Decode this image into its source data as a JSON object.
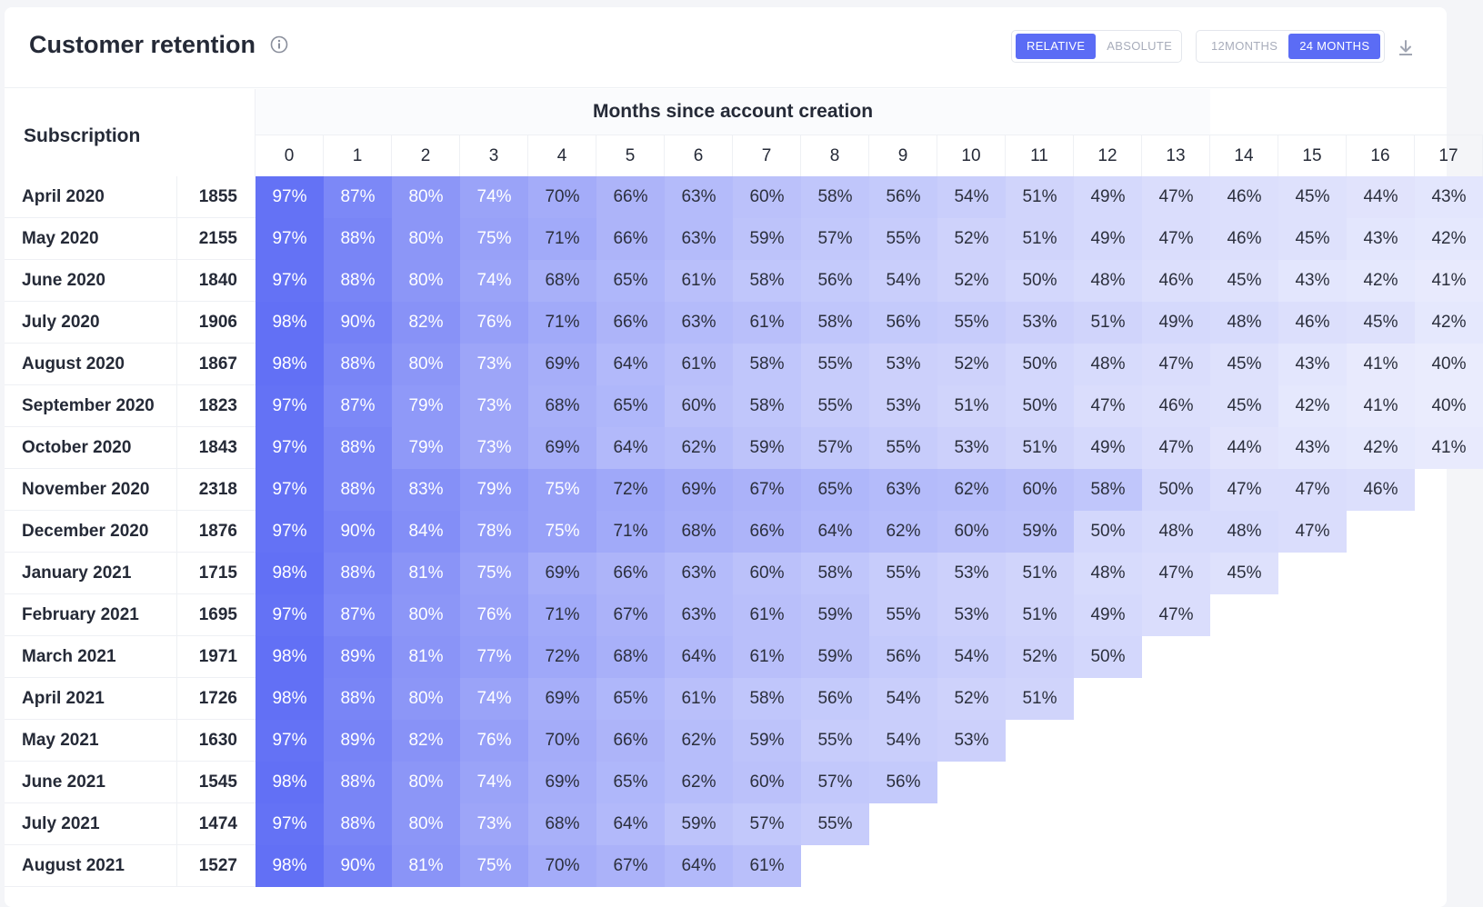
{
  "header": {
    "title": "Customer retention",
    "mode_toggle": {
      "options": [
        "RELATIVE",
        "ABSOLUTE"
      ],
      "selected": "RELATIVE"
    },
    "range_toggle": {
      "options": [
        "12MONTHS",
        "24 MONTHS"
      ],
      "selected": "24 MONTHS"
    },
    "icons": {
      "info": "info-icon",
      "download": "download-icon"
    }
  },
  "table": {
    "row_header": "Subscription",
    "column_group_title": "Months since account creation",
    "columns": [
      "0",
      "1",
      "2",
      "3",
      "4",
      "5",
      "6",
      "7",
      "8",
      "9",
      "10",
      "11",
      "12",
      "13",
      "14",
      "15",
      "16",
      "17"
    ],
    "accent_color": "#5b6cf5",
    "rows": [
      {
        "label": "April 2020",
        "count": "1855",
        "values": [
          "97%",
          "87%",
          "80%",
          "74%",
          "70%",
          "66%",
          "63%",
          "60%",
          "58%",
          "56%",
          "54%",
          "51%",
          "49%",
          "47%",
          "46%",
          "45%",
          "44%",
          "43%"
        ]
      },
      {
        "label": "May 2020",
        "count": "2155",
        "values": [
          "97%",
          "88%",
          "80%",
          "75%",
          "71%",
          "66%",
          "63%",
          "59%",
          "57%",
          "55%",
          "52%",
          "51%",
          "49%",
          "47%",
          "46%",
          "45%",
          "43%",
          "42%"
        ]
      },
      {
        "label": "June 2020",
        "count": "1840",
        "values": [
          "97%",
          "88%",
          "80%",
          "74%",
          "68%",
          "65%",
          "61%",
          "58%",
          "56%",
          "54%",
          "52%",
          "50%",
          "48%",
          "46%",
          "45%",
          "43%",
          "42%",
          "41%"
        ]
      },
      {
        "label": "July 2020",
        "count": "1906",
        "values": [
          "98%",
          "90%",
          "82%",
          "76%",
          "71%",
          "66%",
          "63%",
          "61%",
          "58%",
          "56%",
          "55%",
          "53%",
          "51%",
          "49%",
          "48%",
          "46%",
          "45%",
          "42%"
        ]
      },
      {
        "label": "August 2020",
        "count": "1867",
        "values": [
          "98%",
          "88%",
          "80%",
          "73%",
          "69%",
          "64%",
          "61%",
          "58%",
          "55%",
          "53%",
          "52%",
          "50%",
          "48%",
          "47%",
          "45%",
          "43%",
          "41%",
          "40%"
        ]
      },
      {
        "label": "September 2020",
        "count": "1823",
        "values": [
          "97%",
          "87%",
          "79%",
          "73%",
          "68%",
          "65%",
          "60%",
          "58%",
          "55%",
          "53%",
          "51%",
          "50%",
          "47%",
          "46%",
          "45%",
          "42%",
          "41%",
          "40%"
        ]
      },
      {
        "label": "October 2020",
        "count": "1843",
        "values": [
          "97%",
          "88%",
          "79%",
          "73%",
          "69%",
          "64%",
          "62%",
          "59%",
          "57%",
          "55%",
          "53%",
          "51%",
          "49%",
          "47%",
          "44%",
          "43%",
          "42%",
          "41%"
        ]
      },
      {
        "label": "November 2020",
        "count": "2318",
        "values": [
          "97%",
          "88%",
          "83%",
          "79%",
          "75%",
          "72%",
          "69%",
          "67%",
          "65%",
          "63%",
          "62%",
          "60%",
          "58%",
          "50%",
          "47%",
          "47%",
          "46%"
        ]
      },
      {
        "label": "December 2020",
        "count": "1876",
        "values": [
          "97%",
          "90%",
          "84%",
          "78%",
          "75%",
          "71%",
          "68%",
          "66%",
          "64%",
          "62%",
          "60%",
          "59%",
          "50%",
          "48%",
          "48%",
          "47%"
        ]
      },
      {
        "label": "January 2021",
        "count": "1715",
        "values": [
          "98%",
          "88%",
          "81%",
          "75%",
          "69%",
          "66%",
          "63%",
          "60%",
          "58%",
          "55%",
          "53%",
          "51%",
          "48%",
          "47%",
          "45%"
        ]
      },
      {
        "label": "February 2021",
        "count": "1695",
        "values": [
          "97%",
          "87%",
          "80%",
          "76%",
          "71%",
          "67%",
          "63%",
          "61%",
          "59%",
          "55%",
          "53%",
          "51%",
          "49%",
          "47%"
        ]
      },
      {
        "label": "March 2021",
        "count": "1971",
        "values": [
          "98%",
          "89%",
          "81%",
          "77%",
          "72%",
          "68%",
          "64%",
          "61%",
          "59%",
          "56%",
          "54%",
          "52%",
          "50%"
        ]
      },
      {
        "label": "April 2021",
        "count": "1726",
        "values": [
          "98%",
          "88%",
          "80%",
          "74%",
          "69%",
          "65%",
          "61%",
          "58%",
          "56%",
          "54%",
          "52%",
          "51%"
        ]
      },
      {
        "label": "May 2021",
        "count": "1630",
        "values": [
          "97%",
          "89%",
          "82%",
          "76%",
          "70%",
          "66%",
          "62%",
          "59%",
          "55%",
          "54%",
          "53%"
        ]
      },
      {
        "label": "June 2021",
        "count": "1545",
        "values": [
          "98%",
          "88%",
          "80%",
          "74%",
          "69%",
          "65%",
          "62%",
          "60%",
          "57%",
          "56%"
        ]
      },
      {
        "label": "July 2021",
        "count": "1474",
        "values": [
          "97%",
          "88%",
          "80%",
          "73%",
          "68%",
          "64%",
          "59%",
          "57%",
          "55%"
        ]
      },
      {
        "label": "August 2021",
        "count": "1527",
        "values": [
          "98%",
          "90%",
          "81%",
          "75%",
          "70%",
          "67%",
          "64%",
          "61%"
        ]
      }
    ]
  }
}
